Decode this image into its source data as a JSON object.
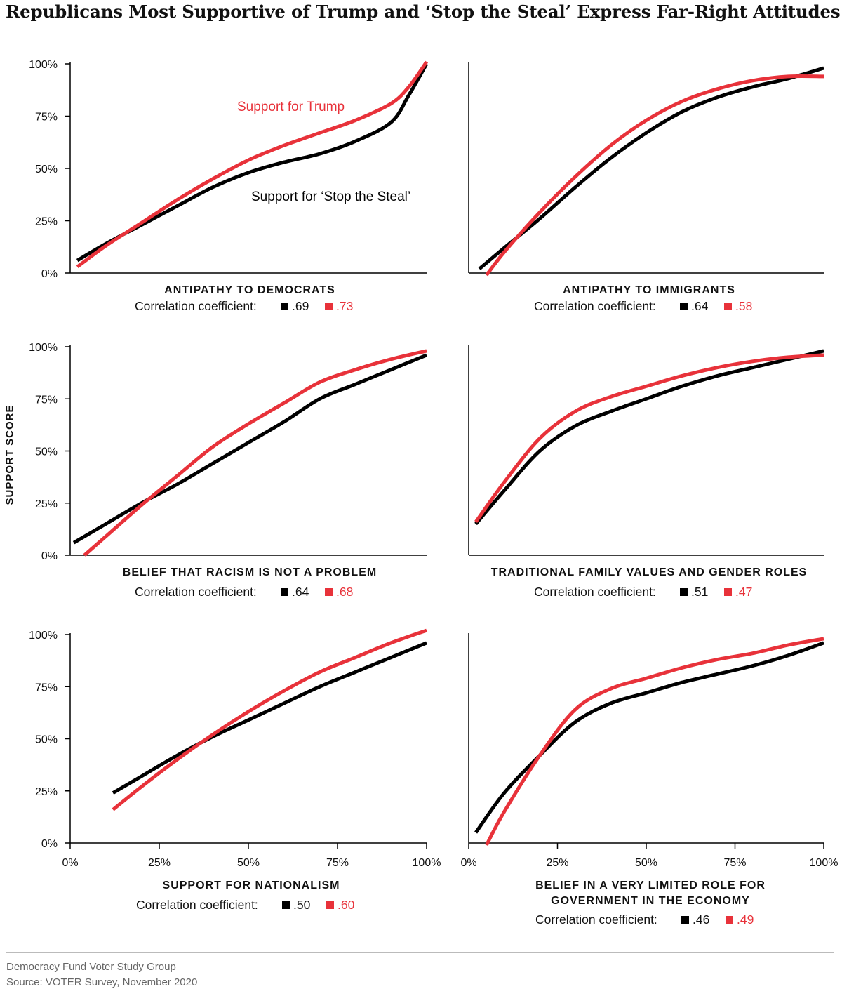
{
  "title": "Republicans Most Supportive of Trump and ‘Stop the Steal’ Express Far-Right Attitudes",
  "y_axis_label": "SUPPORT SCORE",
  "colors": {
    "stop_the_steal": "#000000",
    "trump": "#e8323a",
    "axis": "#000000"
  },
  "corr_label": "Correlation coefficient:",
  "footer": {
    "org": "Democracy Fund Voter Study Group",
    "source": "Source: VOTER Survey, November 2020"
  },
  "chart_data": [
    {
      "type": "line",
      "title": "ANTIPATHY TO DEMOCRATS",
      "ylabel": "SUPPORT SCORE",
      "ylim": [
        0,
        100
      ],
      "xlim": [
        0,
        100
      ],
      "y_ticks": [
        "0%",
        "25%",
        "50%",
        "75%",
        "100%"
      ],
      "x_ticks": [],
      "annotations": [
        "Support for Trump",
        "Support for ‘Stop the Steal’"
      ],
      "correlation": {
        "stop_the_steal": ".69",
        "trump": ".73"
      },
      "series": [
        {
          "name": "Support for ‘Stop the Steal’",
          "color": "#000000",
          "x": [
            2,
            10,
            20,
            30,
            40,
            50,
            60,
            70,
            80,
            90,
            95,
            100
          ],
          "y": [
            6,
            14,
            23,
            32,
            41,
            48,
            53,
            57,
            63,
            72,
            85,
            100
          ]
        },
        {
          "name": "Support for Trump",
          "color": "#e8323a",
          "x": [
            2,
            10,
            20,
            30,
            40,
            50,
            60,
            70,
            80,
            90,
            95,
            100
          ],
          "y": [
            3,
            13,
            24,
            35,
            45,
            54,
            61,
            67,
            73,
            81,
            89,
            101
          ]
        }
      ]
    },
    {
      "type": "line",
      "title": "ANTIPATHY TO IMMIGRANTS",
      "ylim": [
        0,
        100
      ],
      "xlim": [
        0,
        100
      ],
      "y_ticks": [],
      "x_ticks": [],
      "correlation": {
        "stop_the_steal": ".64",
        "trump": ".58"
      },
      "series": [
        {
          "name": "Support for ‘Stop the Steal’",
          "color": "#000000",
          "x": [
            3,
            10,
            20,
            30,
            40,
            50,
            60,
            70,
            80,
            90,
            100
          ],
          "y": [
            2,
            12,
            26,
            41,
            55,
            67,
            77,
            84,
            89,
            93,
            98
          ]
        },
        {
          "name": "Support for Trump",
          "color": "#e8323a",
          "x": [
            5,
            10,
            20,
            30,
            40,
            50,
            60,
            70,
            80,
            90,
            100
          ],
          "y": [
            -1,
            10,
            29,
            46,
            61,
            73,
            82,
            88,
            92,
            94,
            94
          ]
        }
      ]
    },
    {
      "type": "line",
      "title": "BELIEF THAT RACISM IS NOT A PROBLEM",
      "ylabel": "SUPPORT SCORE",
      "ylim": [
        0,
        100
      ],
      "xlim": [
        0,
        100
      ],
      "y_ticks": [
        "0%",
        "25%",
        "50%",
        "75%",
        "100%"
      ],
      "x_ticks": [],
      "correlation": {
        "stop_the_steal": ".64",
        "trump": ".68"
      },
      "series": [
        {
          "name": "Support for ‘Stop the Steal’",
          "color": "#000000",
          "x": [
            1,
            10,
            20,
            30,
            40,
            50,
            60,
            70,
            80,
            90,
            100
          ],
          "y": [
            6,
            15,
            25,
            34,
            44,
            54,
            64,
            75,
            82,
            89,
            96
          ]
        },
        {
          "name": "Support for Trump",
          "color": "#e8323a",
          "x": [
            4,
            10,
            20,
            30,
            40,
            50,
            60,
            70,
            80,
            90,
            100
          ],
          "y": [
            0,
            9,
            24,
            38,
            52,
            63,
            73,
            83,
            89,
            94,
            98
          ]
        }
      ]
    },
    {
      "type": "line",
      "title": "TRADITIONAL FAMILY VALUES AND GENDER ROLES",
      "ylim": [
        0,
        100
      ],
      "xlim": [
        0,
        100
      ],
      "y_ticks": [],
      "x_ticks": [],
      "correlation": {
        "stop_the_steal": ".51",
        "trump": ".47"
      },
      "series": [
        {
          "name": "Support for ‘Stop the Steal’",
          "color": "#000000",
          "x": [
            2,
            10,
            20,
            30,
            40,
            50,
            60,
            70,
            80,
            90,
            100
          ],
          "y": [
            15,
            31,
            50,
            62,
            69,
            75,
            81,
            86,
            90,
            94,
            98
          ]
        },
        {
          "name": "Support for Trump",
          "color": "#e8323a",
          "x": [
            2,
            10,
            20,
            30,
            40,
            50,
            60,
            70,
            80,
            90,
            100
          ],
          "y": [
            16,
            35,
            56,
            69,
            76,
            81,
            86,
            90,
            93,
            95,
            96
          ]
        }
      ]
    },
    {
      "type": "line",
      "title": "SUPPORT FOR NATIONALISM",
      "ylabel": "SUPPORT SCORE",
      "ylim": [
        0,
        100
      ],
      "xlim": [
        0,
        100
      ],
      "y_ticks": [
        "0%",
        "25%",
        "50%",
        "75%",
        "100%"
      ],
      "x_ticks": [
        "0%",
        "25%",
        "50%",
        "75%",
        "100%"
      ],
      "correlation": {
        "stop_the_steal": ".50",
        "trump": ".60"
      },
      "series": [
        {
          "name": "Support for ‘Stop the Steal’",
          "color": "#000000",
          "x": [
            12,
            20,
            30,
            40,
            50,
            60,
            70,
            80,
            90,
            100
          ],
          "y": [
            24,
            32,
            42,
            51,
            59,
            67,
            75,
            82,
            89,
            96
          ]
        },
        {
          "name": "Support for Trump",
          "color": "#e8323a",
          "x": [
            12,
            20,
            30,
            40,
            50,
            60,
            70,
            80,
            90,
            100
          ],
          "y": [
            16,
            27,
            40,
            52,
            63,
            73,
            82,
            89,
            96,
            102
          ]
        }
      ]
    },
    {
      "type": "line",
      "title": "BELIEF IN A VERY LIMITED ROLE FOR GOVERNMENT IN THE ECONOMY",
      "ylim": [
        0,
        100
      ],
      "xlim": [
        0,
        100
      ],
      "y_ticks": [],
      "x_ticks": [
        "0%",
        "25%",
        "50%",
        "75%",
        "100%"
      ],
      "correlation": {
        "stop_the_steal": ".46",
        "trump": ".49"
      },
      "series": [
        {
          "name": "Support for ‘Stop the Steal’",
          "color": "#000000",
          "x": [
            2,
            10,
            20,
            30,
            40,
            50,
            60,
            70,
            80,
            90,
            100
          ],
          "y": [
            5,
            24,
            42,
            58,
            67,
            72,
            77,
            81,
            85,
            90,
            96
          ]
        },
        {
          "name": "Support for Trump",
          "color": "#e8323a",
          "x": [
            5,
            10,
            20,
            30,
            40,
            50,
            60,
            70,
            80,
            90,
            100
          ],
          "y": [
            -1,
            15,
            42,
            64,
            74,
            79,
            84,
            88,
            91,
            95,
            98
          ]
        }
      ]
    }
  ]
}
